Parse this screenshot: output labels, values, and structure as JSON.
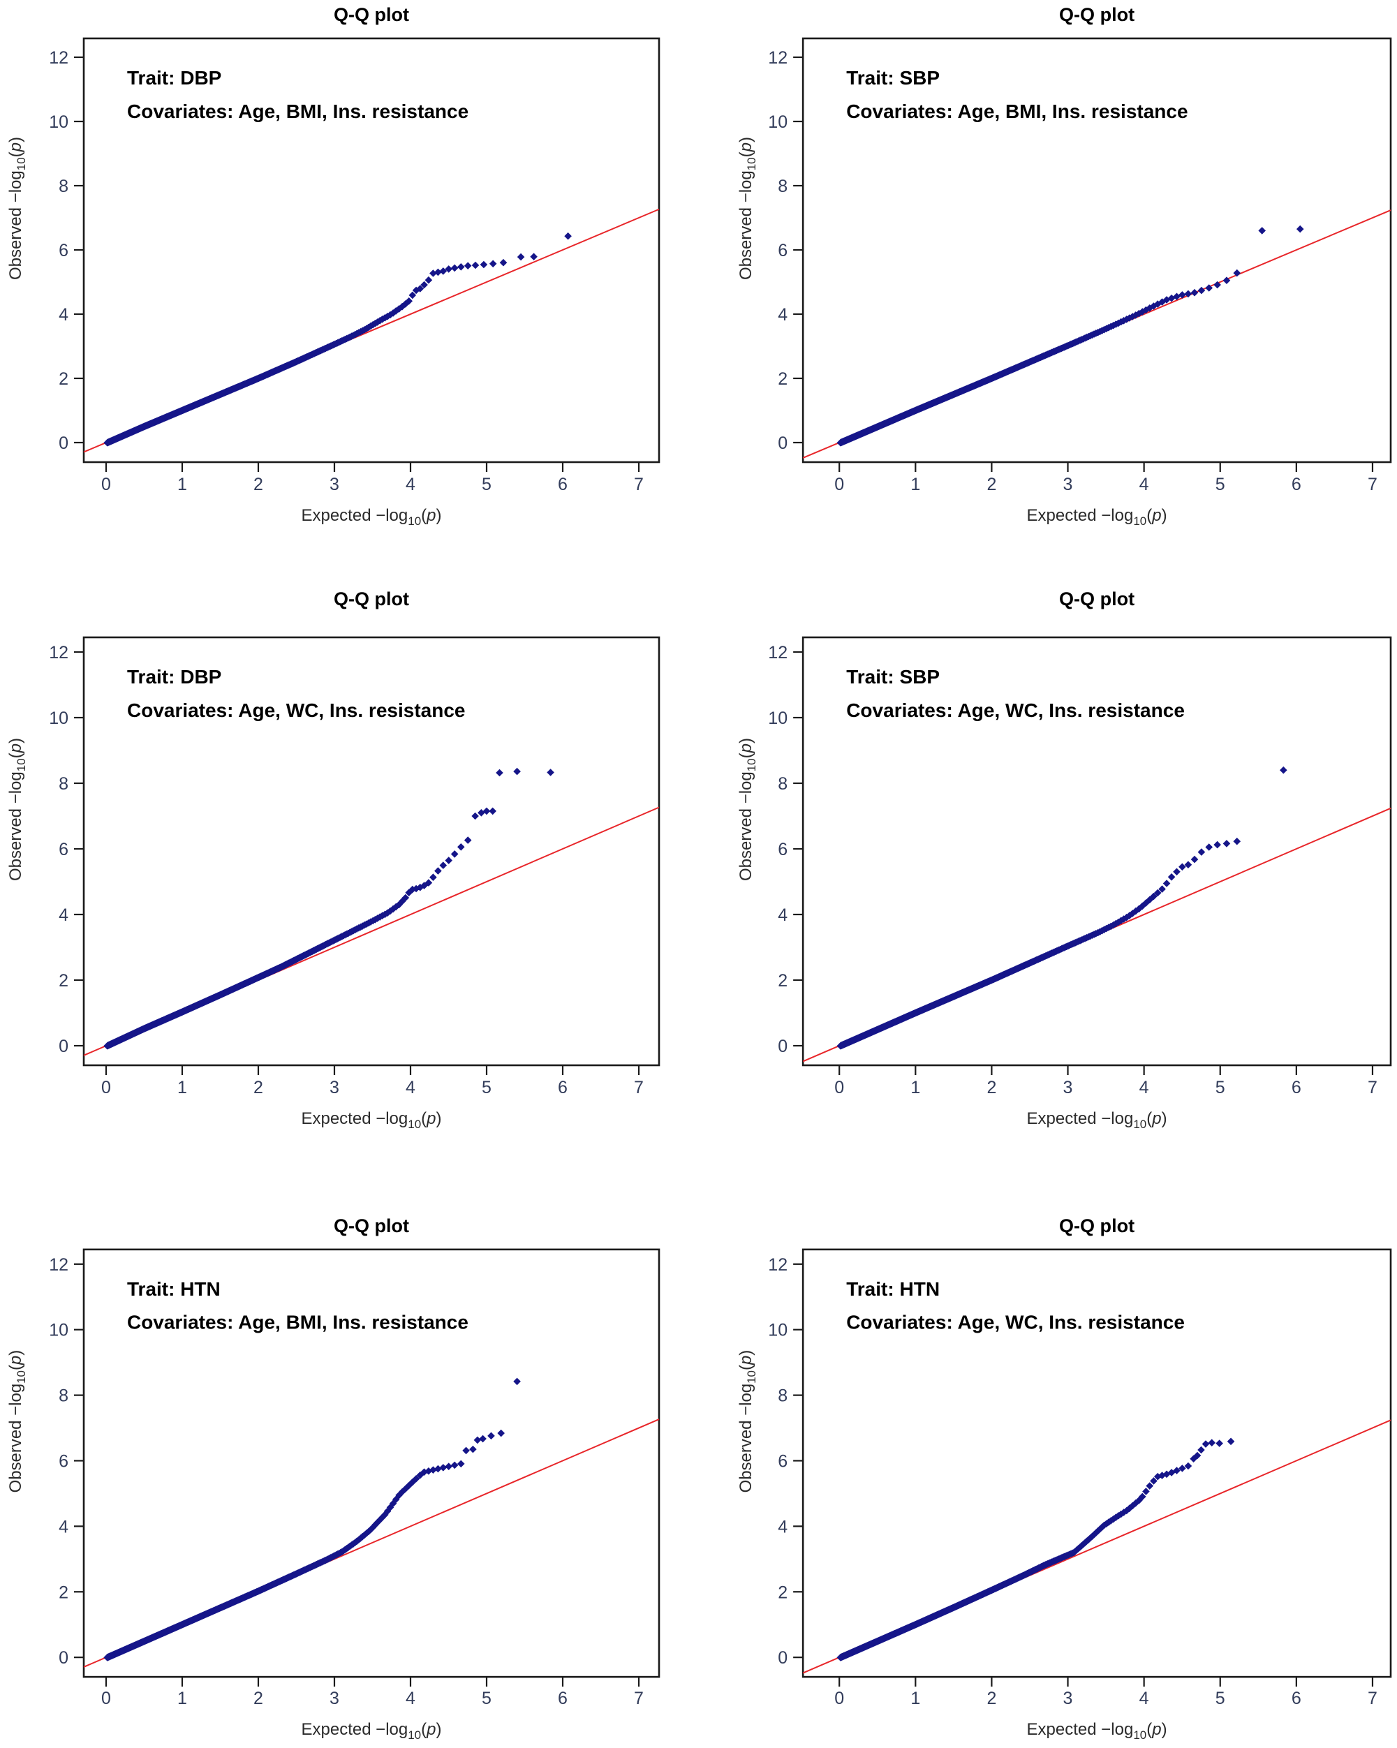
{
  "style": {
    "background": "#ffffff",
    "point_color": "#151589",
    "reference_line_color": "#e8262a",
    "axis_color": "#1a1a1a",
    "tick_label_color": "#323c5a",
    "title_color": "#000000",
    "annotation_color": "#000000",
    "axis_label_color": "#2b2b2b"
  },
  "axes": {
    "x_label_pre": "Expected  −log",
    "y_label_pre": "Observed  −log",
    "label_sub": "10",
    "label_open": "(",
    "label_var": "p",
    "label_close": ")",
    "x_ticks": [
      0,
      1,
      2,
      3,
      4,
      5,
      6,
      7
    ],
    "y_ticks": [
      0,
      2,
      4,
      6,
      8,
      10,
      12
    ],
    "xlim": [
      -0.28,
      7.28
    ],
    "ylim": [
      -0.6,
      12.6
    ]
  },
  "render": {
    "marker_half": 5.3,
    "density_base": 0.001,
    "density_exp": 0.42,
    "curve_start_x": 0.015
  },
  "chart_data": [
    {
      "type": "scatter",
      "title": "Q-Q plot",
      "trait_line": "Trait: DBP",
      "covariates_line": "Covariates: Age, BMI, Ins. resistance",
      "xlabel": "Expected −log10(p)",
      "ylabel": "Observed −log10(p)",
      "legend": "none",
      "grid": "off",
      "curve": [
        [
          0,
          -0.02
        ],
        [
          0.5,
          0.5
        ],
        [
          1,
          1
        ],
        [
          1.5,
          1.5
        ],
        [
          2,
          2
        ],
        [
          2.5,
          2.52
        ],
        [
          3,
          3.06
        ],
        [
          3.2,
          3.28
        ],
        [
          3.4,
          3.52
        ],
        [
          3.6,
          3.8
        ],
        [
          3.75,
          4.0
        ],
        [
          3.9,
          4.25
        ],
        [
          4.0,
          4.45
        ],
        [
          4.05,
          4.72
        ],
        [
          4.12,
          4.78
        ],
        [
          4.22,
          5.0
        ],
        [
          4.3,
          5.28
        ],
        [
          4.42,
          5.33
        ],
        [
          4.52,
          5.42
        ],
        [
          4.62,
          5.45
        ],
        [
          4.72,
          5.5
        ],
        [
          4.9,
          5.53
        ],
        [
          5.05,
          5.56
        ],
        [
          5.28,
          5.62
        ]
      ],
      "outliers": [
        [
          5.45,
          5.78
        ],
        [
          5.62,
          5.79
        ],
        [
          6.07,
          6.43
        ]
      ]
    },
    {
      "type": "scatter",
      "title": "Q-Q plot",
      "trait_line": "Trait: SBP",
      "covariates_line": "Covariates: Age, BMI, Ins. resistance",
      "xlabel": "Expected −log10(p)",
      "ylabel": "Observed −log10(p)",
      "legend": "none",
      "grid": "off",
      "curve": [
        [
          0,
          -0.02
        ],
        [
          1,
          1
        ],
        [
          2,
          2
        ],
        [
          3,
          3.02
        ],
        [
          3.5,
          3.54
        ],
        [
          3.9,
          3.98
        ],
        [
          4.1,
          4.22
        ],
        [
          4.3,
          4.45
        ],
        [
          4.5,
          4.6
        ],
        [
          4.65,
          4.66
        ],
        [
          4.8,
          4.77
        ],
        [
          4.95,
          4.9
        ],
        [
          5.05,
          5.0
        ],
        [
          5.2,
          5.22
        ],
        [
          5.33,
          5.6
        ]
      ],
      "outliers": [
        [
          5.55,
          6.6
        ],
        [
          6.05,
          6.65
        ]
      ]
    },
    {
      "type": "scatter",
      "title": "Q-Q plot",
      "trait_line": "Trait: DBP",
      "covariates_line": "Covariates: Age, WC, Ins. resistance",
      "xlabel": "Expected −log10(p)",
      "ylabel": "Observed −log10(p)",
      "legend": "none",
      "grid": "off",
      "curve": [
        [
          0,
          -0.02
        ],
        [
          0.5,
          0.52
        ],
        [
          1,
          1.03
        ],
        [
          1.5,
          1.55
        ],
        [
          2,
          2.08
        ],
        [
          2.3,
          2.4
        ],
        [
          2.6,
          2.75
        ],
        [
          2.9,
          3.1
        ],
        [
          3.2,
          3.45
        ],
        [
          3.5,
          3.8
        ],
        [
          3.7,
          4.05
        ],
        [
          3.85,
          4.3
        ],
        [
          3.95,
          4.55
        ],
        [
          4.0,
          4.75
        ],
        [
          4.1,
          4.8
        ],
        [
          4.22,
          4.92
        ],
        [
          4.28,
          5.08
        ],
        [
          4.35,
          5.3
        ],
        [
          4.45,
          5.55
        ],
        [
          4.52,
          5.68
        ],
        [
          4.6,
          5.9
        ],
        [
          4.68,
          6.1
        ],
        [
          4.77,
          6.3
        ]
      ],
      "outliers": [
        [
          4.85,
          7.0
        ],
        [
          4.93,
          7.1
        ],
        [
          5.0,
          7.15
        ],
        [
          5.08,
          7.15
        ],
        [
          5.17,
          8.32
        ],
        [
          5.4,
          8.36
        ],
        [
          5.84,
          8.33
        ]
      ]
    },
    {
      "type": "scatter",
      "title": "Q-Q plot",
      "trait_line": "Trait: SBP",
      "covariates_line": "Covariates: Age, WC, Ins. resistance",
      "xlabel": "Expected −log10(p)",
      "ylabel": "Observed −log10(p)",
      "legend": "none",
      "grid": "off",
      "curve": [
        [
          0,
          -0.02
        ],
        [
          1,
          1
        ],
        [
          2,
          2
        ],
        [
          2.5,
          2.52
        ],
        [
          3,
          3.04
        ],
        [
          3.4,
          3.45
        ],
        [
          3.6,
          3.68
        ],
        [
          3.8,
          3.95
        ],
        [
          3.95,
          4.2
        ],
        [
          4.1,
          4.5
        ],
        [
          4.25,
          4.8
        ],
        [
          4.38,
          5.2
        ],
        [
          4.5,
          5.45
        ],
        [
          4.62,
          5.55
        ],
        [
          4.72,
          5.85
        ],
        [
          4.85,
          6.05
        ],
        [
          5.0,
          6.15
        ],
        [
          5.15,
          6.17
        ],
        [
          5.33,
          6.32
        ]
      ],
      "outliers": [
        [
          5.83,
          8.4
        ]
      ]
    },
    {
      "type": "scatter",
      "title": "Q-Q plot",
      "trait_line": "Trait: HTN",
      "covariates_line": "Covariates: Age, BMI, Ins. resistance",
      "xlabel": "Expected −log10(p)",
      "ylabel": "Observed −log10(p)",
      "legend": "none",
      "grid": "off",
      "curve": [
        [
          0,
          -0.02
        ],
        [
          1,
          1
        ],
        [
          2,
          2.02
        ],
        [
          2.5,
          2.55
        ],
        [
          2.9,
          2.98
        ],
        [
          3.1,
          3.22
        ],
        [
          3.3,
          3.55
        ],
        [
          3.47,
          3.88
        ],
        [
          3.67,
          4.37
        ],
        [
          3.86,
          4.98
        ],
        [
          4.05,
          5.4
        ],
        [
          4.17,
          5.65
        ],
        [
          4.45,
          5.8
        ],
        [
          4.69,
          5.92
        ]
      ],
      "outliers": [
        [
          4.73,
          6.31
        ],
        [
          4.82,
          6.35
        ],
        [
          4.88,
          6.63
        ],
        [
          4.95,
          6.67
        ],
        [
          5.06,
          6.76
        ],
        [
          5.19,
          6.84
        ],
        [
          5.4,
          8.42
        ]
      ]
    },
    {
      "type": "scatter",
      "title": "Q-Q plot",
      "trait_line": "Trait: HTN",
      "covariates_line": "Covariates: Age, WC, Ins. resistance",
      "xlabel": "Expected −log10(p)",
      "ylabel": "Observed −log10(p)",
      "legend": "none",
      "grid": "off",
      "curve": [
        [
          0,
          -0.02
        ],
        [
          1,
          1
        ],
        [
          1.5,
          1.52
        ],
        [
          2,
          2.05
        ],
        [
          2.4,
          2.48
        ],
        [
          2.7,
          2.82
        ],
        [
          2.9,
          3.02
        ],
        [
          3.08,
          3.2
        ],
        [
          3.3,
          3.65
        ],
        [
          3.47,
          4.02
        ],
        [
          3.65,
          4.3
        ],
        [
          3.78,
          4.49
        ],
        [
          3.96,
          4.84
        ],
        [
          4.08,
          5.25
        ],
        [
          4.17,
          5.51
        ],
        [
          4.33,
          5.61
        ],
        [
          4.45,
          5.72
        ],
        [
          4.6,
          5.86
        ]
      ],
      "outliers": [
        [
          4.65,
          6.06
        ],
        [
          4.7,
          6.16
        ],
        [
          4.75,
          6.33
        ],
        [
          4.81,
          6.51
        ],
        [
          4.89,
          6.55
        ],
        [
          4.99,
          6.53
        ],
        [
          5.14,
          6.59
        ]
      ]
    }
  ]
}
